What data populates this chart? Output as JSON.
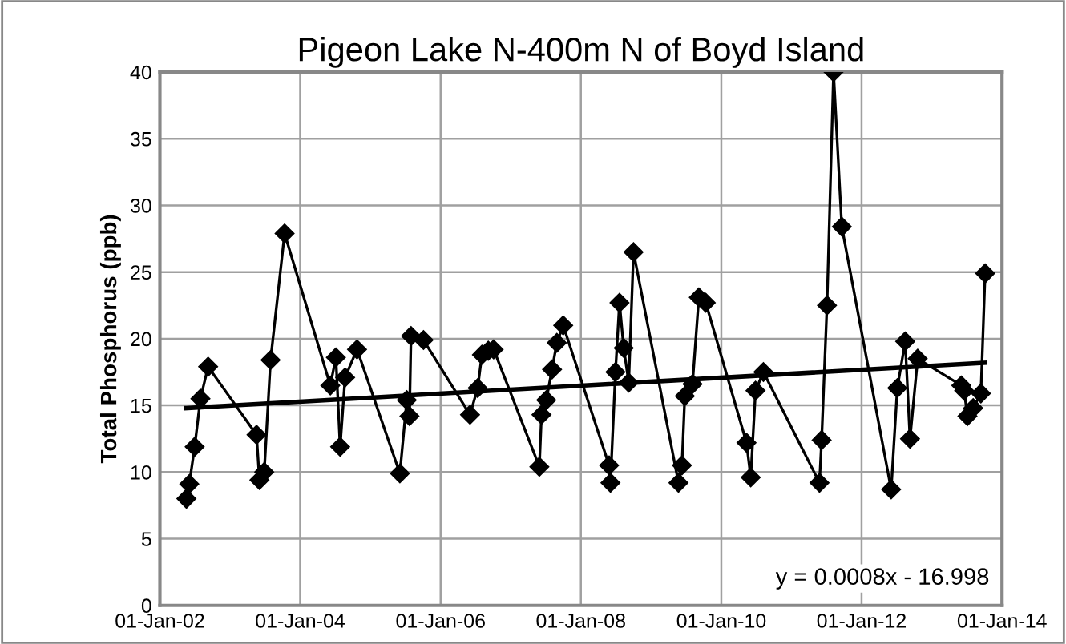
{
  "chart_data": {
    "type": "line",
    "title": "Pigeon Lake N-400m N of Boyd Island",
    "ylabel": "Total Phosphorus (ppb)",
    "x": [
      "2002-05-19",
      "2002-06-03",
      "2002-07-01",
      "2002-07-31",
      "2002-09-09",
      "2003-05-19",
      "2003-06-03",
      "2003-06-28",
      "2003-07-31",
      "2003-10-12",
      "2004-06-06",
      "2004-07-05",
      "2004-07-27",
      "2004-08-22",
      "2004-10-23",
      "2005-06-03",
      "2005-07-09",
      "2005-07-23",
      "2005-07-31",
      "2005-10-04",
      "2006-06-03",
      "2006-07-13",
      "2006-08-04",
      "2006-09-06",
      "2006-10-04",
      "2007-05-30",
      "2007-06-10",
      "2007-07-05",
      "2007-08-04",
      "2007-08-29",
      "2007-10-01",
      "2008-05-27",
      "2008-06-03",
      "2008-06-29",
      "2008-07-20",
      "2008-08-11",
      "2008-09-06",
      "2008-10-01",
      "2009-05-23",
      "2009-06-10",
      "2009-06-25",
      "2009-08-04",
      "2009-09-06",
      "2009-10-12",
      "2010-05-12",
      "2010-06-03",
      "2010-06-28",
      "2010-08-08",
      "2011-05-27",
      "2011-06-07",
      "2011-07-05",
      "2011-08-08",
      "2011-09-20",
      "2012-06-03",
      "2012-07-05",
      "2012-08-15",
      "2012-09-09",
      "2012-10-19",
      "2013-06-03",
      "2013-06-18",
      "2013-07-05",
      "2013-08-04",
      "2013-09-13",
      "2013-10-05"
    ],
    "series": [
      {
        "color": "#000000",
        "marker": "diamond",
        "values": [
          8,
          9.1,
          11.9,
          15.5,
          17.9,
          12.8,
          9.4,
          10,
          18.4,
          27.9,
          16.5,
          18.6,
          11.9,
          17.1,
          19.2,
          9.9,
          15.4,
          14.2,
          20.2,
          19.9,
          14.3,
          16.3,
          18.8,
          19.1,
          19.2,
          10.4,
          14.3,
          15.4,
          17.7,
          19.7,
          21,
          10.5,
          9.2,
          17.5,
          22.7,
          19.3,
          16.7,
          26.5,
          9.2,
          10.5,
          15.7,
          16.6,
          23.1,
          22.7,
          12.2,
          9.6,
          16.1,
          17.5,
          9.2,
          12.4,
          22.5,
          40,
          28.4,
          8.7,
          16.3,
          19.8,
          12.5,
          18.5,
          16.5,
          16.1,
          14.2,
          14.8,
          15.9,
          24.9
        ]
      },
      {
        "type": "line",
        "color": "#000000",
        "marker": "none",
        "x": [
          "2002-05-19",
          "2013-10-05"
        ],
        "values": [
          14.8,
          18.2
        ]
      }
    ],
    "xlim": [
      "2002-01-01",
      "2014-01-01"
    ],
    "xticks": [
      {
        "value": "2002-01-01",
        "label": "01-Jan-02"
      },
      {
        "value": "2004-01-01",
        "label": "01-Jan-04"
      },
      {
        "value": "2006-01-01",
        "label": "01-Jan-06"
      },
      {
        "value": "2008-01-01",
        "label": "01-Jan-08"
      },
      {
        "value": "2010-01-01",
        "label": "01-Jan-10"
      },
      {
        "value": "2012-01-01",
        "label": "01-Jan-12"
      },
      {
        "value": "2014-01-01",
        "label": "01-Jan-14"
      }
    ],
    "ylim": [
      0,
      40
    ],
    "yticks": [
      0,
      5,
      10,
      15,
      20,
      25,
      30,
      35,
      40
    ],
    "grid": true,
    "legend": false,
    "line_style": "solid",
    "annotations": [
      "y = 0.0008x - 16.998"
    ]
  }
}
